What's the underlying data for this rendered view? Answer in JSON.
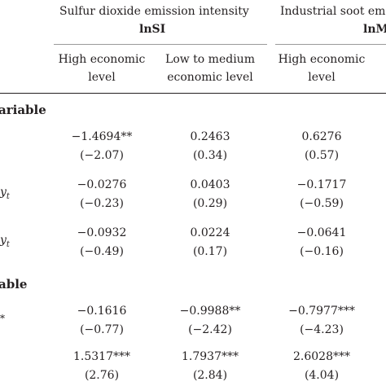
{
  "header": {
    "group1_title": "Sulfur dioxide emission intensity",
    "group1_var": "lnSI",
    "group2_title": "Industrial soot em",
    "group2_var": "lnM"
  },
  "columns": [
    [
      "High economic",
      "level"
    ],
    [
      "Low to medium",
      "economic level"
    ],
    [
      "High economic",
      "level"
    ]
  ],
  "sections": {
    "s1": "ariable",
    "s2": "able"
  },
  "row_labels": {
    "r2": "y",
    "r2_sub": "t",
    "r3": "y",
    "r3_sub": "t",
    "r4": "*"
  },
  "rows": [
    {
      "coef": [
        "−1.4694**",
        "0.2463",
        "0.6276"
      ],
      "t": [
        "(−2.07)",
        "(0.34)",
        "(0.57)"
      ]
    },
    {
      "coef": [
        "−0.0276",
        "0.0403",
        "−0.1717"
      ],
      "t": [
        "(−0.23)",
        "(0.29)",
        "(−0.59)"
      ]
    },
    {
      "coef": [
        "−0.0932",
        "0.0224",
        "−0.0641"
      ],
      "t": [
        "(−0.49)",
        "(0.17)",
        "(−0.16)"
      ]
    },
    {
      "coef": [
        "−0.1616",
        "−0.9988**",
        "−0.7977***"
      ],
      "t": [
        "(−0.77)",
        "(−2.42)",
        "(−4.23)"
      ]
    },
    {
      "coef": [
        "1.5317***",
        "1.7937***",
        "2.6028***"
      ],
      "t": [
        "(2.76)",
        "(2.84)",
        "(4.04)"
      ]
    }
  ]
}
